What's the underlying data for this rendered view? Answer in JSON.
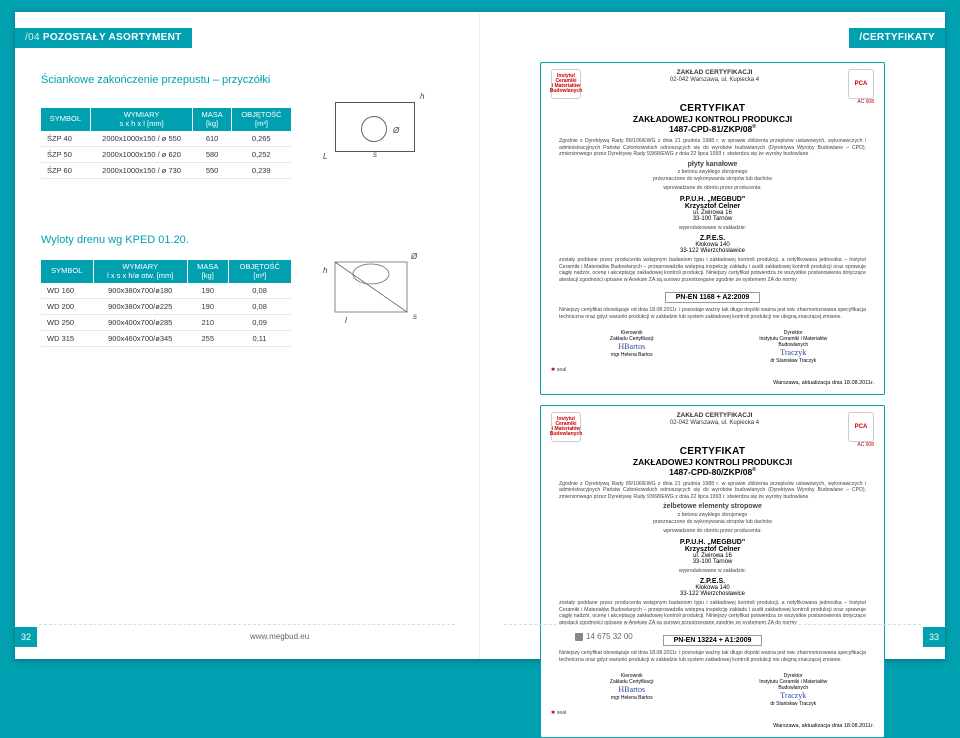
{
  "header": {
    "left_num": "/04",
    "left_title": "POZOSTAŁY ASORTYMENT",
    "right_title": "/CERTYFIKATY"
  },
  "section1_title": "Ściankowe zakończenie przepustu – przyczółki",
  "section2_title": "Wyloty drenu wg KPED 01.20.",
  "table1": {
    "headers": [
      "SYMBOL",
      "WYMIARY\ns x h x l [mm]",
      "MASA\n[kg]",
      "OBJĘTOŚĆ\n[m³]"
    ],
    "rows": [
      [
        "ŚZP 40",
        "2000x1000x150 / ø 550",
        "610",
        "0,265"
      ],
      [
        "ŚZP 50",
        "2000x1000x150 / ø 620",
        "580",
        "0,252"
      ],
      [
        "ŚZP 60",
        "2000x1000x150 / ø 730",
        "550",
        "0,239"
      ]
    ]
  },
  "table2": {
    "headers": [
      "SYMBOL",
      "WYMIARY\nl x s x h/ø otw. [mm]",
      "MASA\n[kg]",
      "OBJĘTOŚĆ\n[m³]"
    ],
    "rows": [
      [
        "WD 160",
        "900x380x700/ø180",
        "190",
        "0,08"
      ],
      [
        "WD 200",
        "900x380x700/ø225",
        "190",
        "0,08"
      ],
      [
        "WD 250",
        "900x400x700/ø285",
        "210",
        "0,09"
      ],
      [
        "WD 315",
        "900x460x700/ø345",
        "255",
        "0,11"
      ]
    ]
  },
  "diag": {
    "L": "L",
    "h": "h",
    "s": "s",
    "O": "Ø",
    "l": "l"
  },
  "cert": {
    "inst": "Instytut Ceramiki\ni Materiałów\nBudowlanych",
    "zc": "ZAKŁAD CERTYFIKACJI",
    "addr": "02-042 Warszawa, ul. Kupiecka 4",
    "pca": "PCA",
    "ac": "AC 008",
    "title": "CERTYFIKAT",
    "sub": "ZAKŁADOWEJ KONTROLI PRODUKCJI",
    "code1": "1487-CPD-81/ZKP/08",
    "code2": "1487-CPD-80/ZKP/08",
    "body1": "Zgodnie z Dyrektywą Rady 89/106/EWG z dnia 21 grudnia 1988 r. w sprawie zbliżenia przepisów ustawowych, wykonawczych i administracyjnych Państw Członkowskich odnoszących się do wyrobów budowlanych (Dyrektywa Wyroby Budowlane – CPD), zmienionwego przez Dyrektywę Rady 93/68/EWG z dnia 22 lipca 1993 r. stwierdza się że wyroby budowlane",
    "prod1a": "płyty kanałowe",
    "prod1b": "z betonu zwykłego zbrojonego\nprzeznaczone do wykonywania stropów lub dachów",
    "prod2a": "żelbetowe elementy stropowe",
    "prod2b": "z betonu zwykłego zbrojonego\nprzeznaczone do wykonywania stropów lub dachów",
    "intro": "wprowadzane do obrotu przez producenta:",
    "company_name": "P.P.U.H. „MEGBUD\"",
    "company_person": "Krzysztof Celner",
    "company_addr1": "ul. Żwirowa 16",
    "company_addr2": "33-100 Tarnów",
    "zaklad": "wyprodukowane w zakładzie:",
    "zpes": "Z.P.E.S.",
    "zpes_addr1": "Kłokowa 140",
    "zpes_addr2": "33-122 Wierzchosławice",
    "body2": "zostały poddane przez producenta wstępnym badaniom typu i zakładowej kontroli produkcji, a notyfikowana jednostka – Instytut Ceramiki i Materiałów Budowlanych – przeprowadziła wstępną inspekcję zakładu i audit zakładowej kontroli produkcji oraz sprawuje ciągły nadzór, ocenę i akceptację zakładowej kontroli produkcji. Niniejszy certyfikat potwierdza że wszystkie postanowienia dotyczące atestacji zgodności opisane w Aneksie ZA są surowo przestrzegane zgodnie ze systemem ZA do normy",
    "norm1": "PN-EN 1168 + A2:2009",
    "norm2": "PN-EN 13224 + A1:2009",
    "body3": "Niniejszy certyfikat obowiązuje od dnia 18.08.2011r. i pozostaje ważny tak długo dopóki ważna jest ww. zharmonizowana specyfikacja techniczna oraz gdyż warunki produkcji w zakładzie lub system zakładowej kontroli produkcji nie ulegną znaczącej zmianie.",
    "sign_l_title": "Kierownik\nZakładu Certyfikacji",
    "sign_l_name": "mgr Helena Bartos",
    "sign_r_title": "Dyrektor\nInstytutu Ceramiki i Materiałów\nBudowlanych",
    "sign_r_name": "dr Stanisław Traczyk",
    "date": "Warszawa, aktualizacja dnia 18.08.2011r."
  },
  "footer": {
    "url": "www.megbud.eu",
    "phone": "14 675 32 00",
    "page_left": "32",
    "page_right": "33"
  }
}
